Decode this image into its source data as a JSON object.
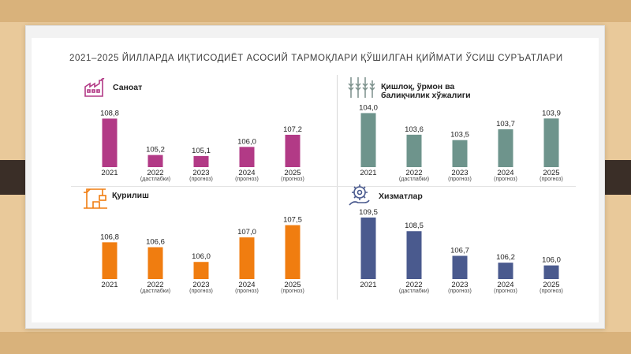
{
  "title": "2021–2025 ЙИЛЛАРДА ИҚТИСОДИЁТ АСОСИЙ ТАРМОҚЛАРИ ҚЎШИЛГАН ҚИЙМАТИ ЎСИШ СУРЪАТЛАРИ",
  "colors": {
    "industry": "#b23a86",
    "agriculture": "#6e948c",
    "construction": "#f07d10",
    "services": "#4a5a8e"
  },
  "icons": {
    "industry": "factory-icon",
    "agriculture": "wheat-icon",
    "construction": "crane-icon",
    "services": "gear-hand-icon"
  },
  "chart_data": [
    {
      "type": "bar",
      "title": "Саноат",
      "categories": [
        "2021",
        "2022",
        "2023",
        "2024",
        "2025"
      ],
      "category_notes": [
        "",
        "(дастлабки)",
        "(прогноз)",
        "(прогноз)",
        "(прогноз)"
      ],
      "values": [
        108.8,
        105.2,
        105.1,
        106.0,
        107.2
      ],
      "value_labels": [
        "108,8",
        "105,2",
        "105,1",
        "106,0",
        "107,2"
      ],
      "ylim": [
        104.0,
        109.3
      ]
    },
    {
      "type": "bar",
      "title": "Қишлоқ, ўрмон ва балиқчилик хўжалиги",
      "categories": [
        "2021",
        "2022",
        "2023",
        "2024",
        "2025"
      ],
      "category_notes": [
        "",
        "(дастлабки)",
        "(прогноз)",
        "(прогноз)",
        "(прогноз)"
      ],
      "values": [
        104.0,
        103.6,
        103.5,
        103.7,
        103.9
      ],
      "value_labels": [
        "104,0",
        "103,6",
        "103,5",
        "103,7",
        "103,9"
      ],
      "ylim": [
        103.0,
        104.05
      ]
    },
    {
      "type": "bar",
      "title": "Қурилиш",
      "categories": [
        "2021",
        "2022",
        "2023",
        "2024",
        "2025"
      ],
      "category_notes": [
        "",
        "(дастлабки)",
        "(прогноз)",
        "(прогноз)",
        "(прогноз)"
      ],
      "values": [
        106.8,
        106.6,
        106.0,
        107.0,
        107.5
      ],
      "value_labels": [
        "106,8",
        "106,6",
        "106,0",
        "107,0",
        "107,5"
      ],
      "ylim": [
        105.3,
        107.55
      ]
    },
    {
      "type": "bar",
      "title": "Хизматлар",
      "categories": [
        "2021",
        "2022",
        "2023",
        "2024",
        "2025"
      ],
      "category_notes": [
        "",
        "(дастлабки)",
        "(прогноз)",
        "(прогноз)",
        "(прогноз)"
      ],
      "values": [
        109.5,
        108.5,
        106.7,
        106.2,
        106.0
      ],
      "value_labels": [
        "109,5",
        "108,5",
        "106,7",
        "106,2",
        "106,0"
      ],
      "ylim": [
        105.0,
        109.55
      ]
    }
  ]
}
